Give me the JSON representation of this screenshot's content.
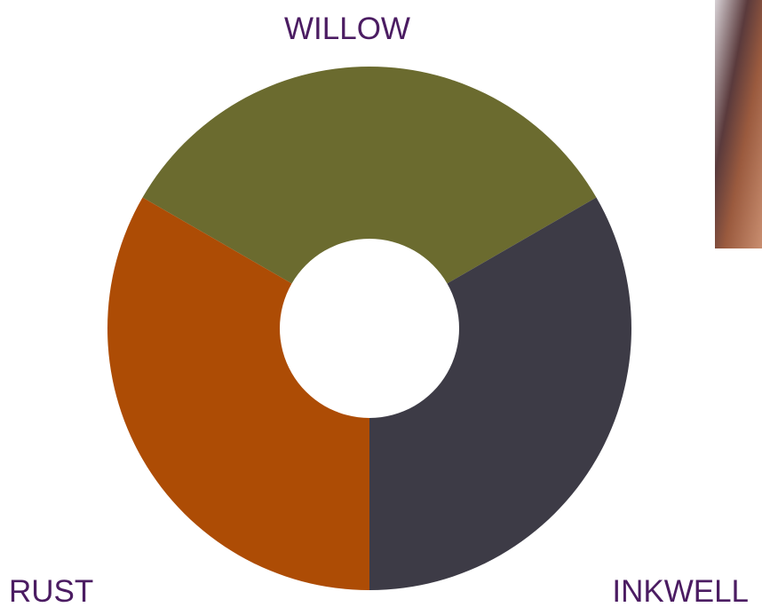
{
  "swatches": [
    {
      "name": "WILLOW",
      "color": "#6b6b2f"
    },
    {
      "name": "INKWELL",
      "color": "#3d3b46"
    },
    {
      "name": "RUST",
      "color": "#ad4c05"
    }
  ]
}
